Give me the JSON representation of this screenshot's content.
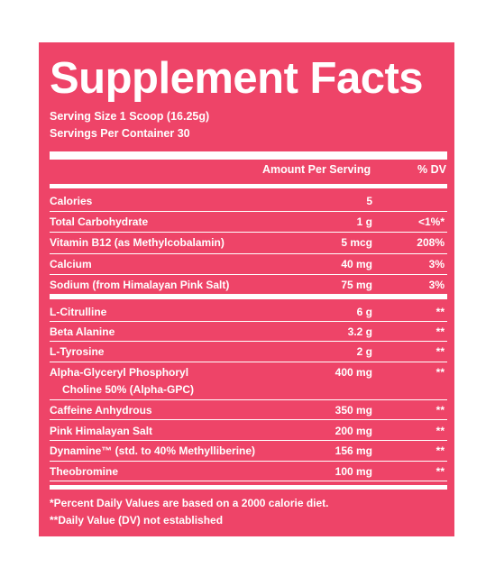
{
  "label": {
    "title": "Supplement Facts",
    "serving_size": "Serving Size 1 Scoop (16.25g)",
    "servings_per_container": "Servings Per Container 30",
    "header_amount": "Amount Per Serving",
    "header_dv": "% DV",
    "background_color": "#ee4468",
    "text_color": "#ffffff"
  },
  "nutrients": [
    {
      "name": "Calories",
      "amount": "5",
      "dv": ""
    },
    {
      "name": "Total Carbohydrate",
      "amount": "1 g",
      "dv": "<1%*"
    },
    {
      "name": "Vitamin B12 (as Methylcobalamin)",
      "amount": "5 mcg",
      "dv": "208%"
    },
    {
      "name": "Calcium",
      "amount": "40 mg",
      "dv": "3%"
    },
    {
      "name": "Sodium (from Himalayan Pink Salt)",
      "amount": "75 mg",
      "dv": "3%"
    }
  ],
  "ingredients": [
    {
      "name": "L-Citrulline",
      "name2": "",
      "amount": "6 g",
      "dv": "**"
    },
    {
      "name": "Beta Alanine",
      "name2": "",
      "amount": "3.2 g",
      "dv": "**"
    },
    {
      "name": "L-Tyrosine",
      "name2": "",
      "amount": "2 g",
      "dv": "**"
    },
    {
      "name": "Alpha-Glyceryl Phosphoryl",
      "name2": "Choline 50% (Alpha-GPC)",
      "amount": "400 mg",
      "dv": "**"
    },
    {
      "name": "Caffeine Anhydrous",
      "name2": "",
      "amount": "350 mg",
      "dv": "**"
    },
    {
      "name": "Pink Himalayan Salt",
      "name2": "",
      "amount": "200 mg",
      "dv": "**"
    },
    {
      "name": "Dynamine™ (std. to 40% Methylliberine)",
      "name2": "",
      "amount": "156 mg",
      "dv": "**"
    },
    {
      "name": "Theobromine",
      "name2": "",
      "amount": "100 mg",
      "dv": "**"
    }
  ],
  "footnotes": {
    "line1": "*Percent Daily Values are based on a 2000 calorie diet.",
    "line2": "**Daily Value (DV) not established"
  }
}
